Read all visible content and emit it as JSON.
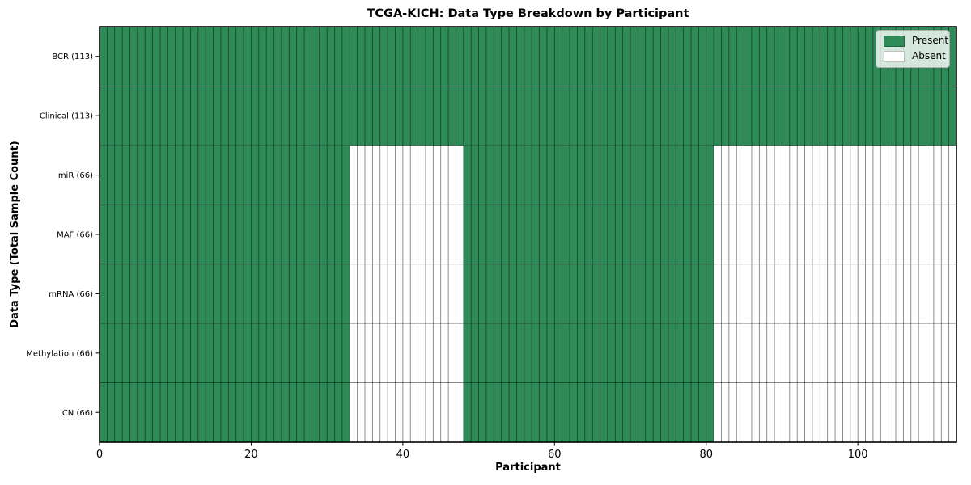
{
  "chart_data": {
    "type": "heatmap",
    "title": "TCGA-KICH: Data Type Breakdown by Participant",
    "xlabel": "Participant",
    "ylabel": "Data Type (Total Sample Count)",
    "n_participants": 113,
    "x_range": [
      0,
      113
    ],
    "x_ticks": [
      0,
      20,
      40,
      60,
      80,
      100
    ],
    "rows": [
      {
        "label": "BCR (113)",
        "total": 113,
        "present_ranges": [
          [
            0,
            113
          ]
        ]
      },
      {
        "label": "Clinical (113)",
        "total": 113,
        "present_ranges": [
          [
            0,
            113
          ]
        ]
      },
      {
        "label": "miR (66)",
        "total": 66,
        "present_ranges": [
          [
            0,
            33
          ],
          [
            48,
            81
          ]
        ]
      },
      {
        "label": "MAF (66)",
        "total": 66,
        "present_ranges": [
          [
            0,
            33
          ],
          [
            48,
            81
          ]
        ]
      },
      {
        "label": "mRNA (66)",
        "total": 66,
        "present_ranges": [
          [
            0,
            33
          ],
          [
            48,
            81
          ]
        ]
      },
      {
        "label": "Methylation (66)",
        "total": 66,
        "present_ranges": [
          [
            0,
            33
          ],
          [
            48,
            81
          ]
        ]
      },
      {
        "label": "CN (66)",
        "total": 66,
        "present_ranges": [
          [
            0,
            33
          ],
          [
            48,
            81
          ]
        ]
      }
    ],
    "legend": [
      {
        "label": "Present",
        "color": "#2e8b57"
      },
      {
        "label": "Absent",
        "color": "#ffffff"
      }
    ],
    "colors": {
      "present": "#2e8b57",
      "absent": "#ffffff",
      "grid_line": "rgba(0,0,0,0.55)",
      "spine": "#000000"
    },
    "grid": "on",
    "legend_position": "upper right"
  }
}
